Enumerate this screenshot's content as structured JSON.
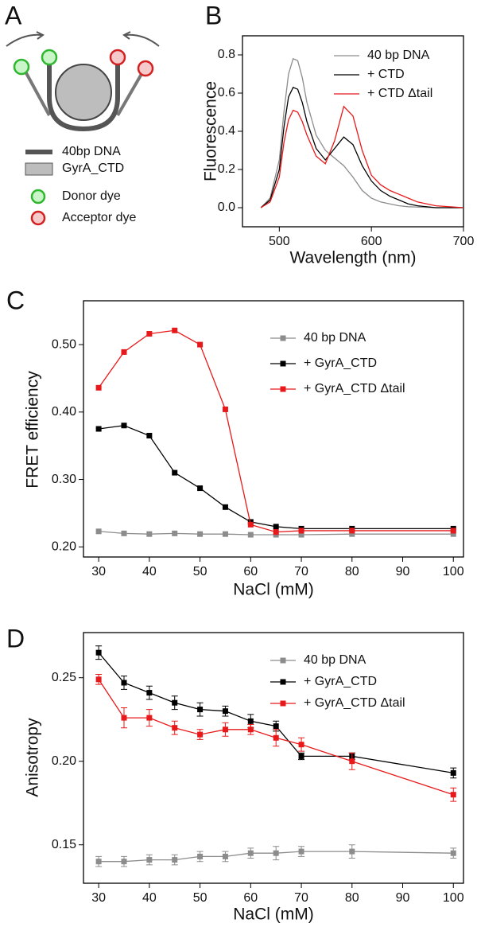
{
  "chart_data": [
    {
      "type": "diagram",
      "label": "A",
      "legend": [
        "40bp DNA",
        "GyrA_CTD",
        "Donor dye",
        "Acceptor dye"
      ]
    },
    {
      "type": "line",
      "label": "B",
      "x_label": "Wavelength (nm)",
      "y_label": "Fluorescence",
      "x": [
        480,
        490,
        500,
        505,
        510,
        515,
        520,
        525,
        530,
        540,
        550,
        560,
        570,
        580,
        590,
        600,
        610,
        620,
        630,
        640,
        650,
        670,
        700
      ],
      "series": [
        {
          "name": "40 bp DNA",
          "color": "#8c8c8c",
          "values": [
            0.0,
            0.05,
            0.25,
            0.5,
            0.7,
            0.78,
            0.77,
            0.68,
            0.55,
            0.38,
            0.3,
            0.26,
            0.22,
            0.16,
            0.09,
            0.05,
            0.03,
            0.02,
            0.01,
            0.005,
            0.003,
            0.0,
            0.0
          ]
        },
        {
          "name": "+ CTD",
          "color": "#000000",
          "values": [
            0.0,
            0.04,
            0.2,
            0.42,
            0.58,
            0.63,
            0.62,
            0.55,
            0.45,
            0.31,
            0.25,
            0.31,
            0.37,
            0.33,
            0.22,
            0.14,
            0.09,
            0.06,
            0.04,
            0.02,
            0.01,
            0.0,
            0.0
          ]
        },
        {
          "name": "+ CTD Δtail",
          "color": "#e8191a",
          "values": [
            0.0,
            0.03,
            0.16,
            0.34,
            0.46,
            0.51,
            0.5,
            0.45,
            0.38,
            0.27,
            0.23,
            0.35,
            0.53,
            0.48,
            0.3,
            0.17,
            0.12,
            0.09,
            0.07,
            0.05,
            0.03,
            0.01,
            0.0
          ]
        }
      ],
      "xlim": [
        460,
        700
      ],
      "xticks": [
        500,
        600,
        700
      ],
      "ylim": [
        -0.1,
        0.9
      ],
      "yticks": [
        {
          "value": 0,
          "label": "0.0"
        },
        0.2,
        0.4,
        0.6,
        0.8
      ]
    },
    {
      "type": "line",
      "label": "C",
      "x_label": "NaCl (mM)",
      "y_label": "FRET efficiency",
      "marker": "square",
      "x": [
        30,
        35,
        40,
        45,
        50,
        55,
        60,
        65,
        70,
        80,
        100
      ],
      "series": [
        {
          "name": "40 bp DNA",
          "color": "#8c8c8c",
          "values": [
            0.223,
            0.22,
            0.219,
            0.22,
            0.219,
            0.219,
            0.218,
            0.218,
            0.218,
            0.219,
            0.219
          ]
        },
        {
          "name": "+ GyrA_CTD",
          "color": "#000000",
          "values": [
            0.375,
            0.38,
            0.365,
            0.31,
            0.287,
            0.259,
            0.237,
            0.23,
            0.227,
            0.227,
            0.227
          ]
        },
        {
          "name": "+ GyrA_CTD Δtail",
          "color": "#e8191a",
          "values": [
            0.436,
            0.489,
            0.516,
            0.521,
            0.5,
            0.404,
            0.233,
            0.222,
            0.224,
            0.224,
            0.224
          ]
        }
      ],
      "xlim": [
        27,
        102
      ],
      "xticks": [
        30,
        40,
        50,
        60,
        70,
        80,
        90,
        100
      ],
      "ylim": [
        0.185,
        0.565
      ],
      "yticks": [
        {
          "value": 0.2,
          "label": "0.20"
        },
        {
          "value": 0.3,
          "label": "0.30"
        },
        {
          "value": 0.4,
          "label": "0.40"
        },
        {
          "value": 0.5,
          "label": "0.50"
        }
      ]
    },
    {
      "type": "line",
      "label": "D",
      "x_label": "NaCl (mM)",
      "y_label": "Anisotropy",
      "marker": "square",
      "x": [
        30,
        35,
        40,
        45,
        50,
        55,
        60,
        65,
        70,
        80,
        100
      ],
      "series": [
        {
          "name": "40 bp DNA",
          "color": "#8c8c8c",
          "values": [
            0.14,
            0.14,
            0.141,
            0.141,
            0.143,
            0.143,
            0.145,
            0.145,
            0.146,
            0.146,
            0.145
          ],
          "errors": [
            0.003,
            0.003,
            0.003,
            0.003,
            0.003,
            0.003,
            0.003,
            0.004,
            0.003,
            0.004,
            0.003
          ]
        },
        {
          "name": "+ GyrA_CTD",
          "color": "#000000",
          "values": [
            0.265,
            0.247,
            0.241,
            0.235,
            0.231,
            0.23,
            0.224,
            0.221,
            0.203,
            0.203,
            0.193
          ],
          "errors": [
            0.004,
            0.004,
            0.004,
            0.004,
            0.004,
            0.003,
            0.004,
            0.003,
            0.002,
            0.002,
            0.003
          ]
        },
        {
          "name": "+ GyrA_CTD Δtail",
          "color": "#e8191a",
          "values": [
            0.249,
            0.226,
            0.226,
            0.22,
            0.216,
            0.219,
            0.219,
            0.214,
            0.21,
            0.2,
            0.18
          ],
          "errors": [
            0.003,
            0.006,
            0.005,
            0.004,
            0.003,
            0.004,
            0.003,
            0.005,
            0.004,
            0.005,
            0.004
          ]
        }
      ],
      "xlim": [
        27,
        102
      ],
      "xticks": [
        30,
        40,
        50,
        60,
        70,
        80,
        90,
        100
      ],
      "ylim": [
        0.127,
        0.277
      ],
      "yticks": [
        {
          "value": 0.15,
          "label": "0.15"
        },
        {
          "value": 0.2,
          "label": "0.20"
        },
        {
          "value": 0.25,
          "label": "0.25"
        }
      ]
    }
  ]
}
